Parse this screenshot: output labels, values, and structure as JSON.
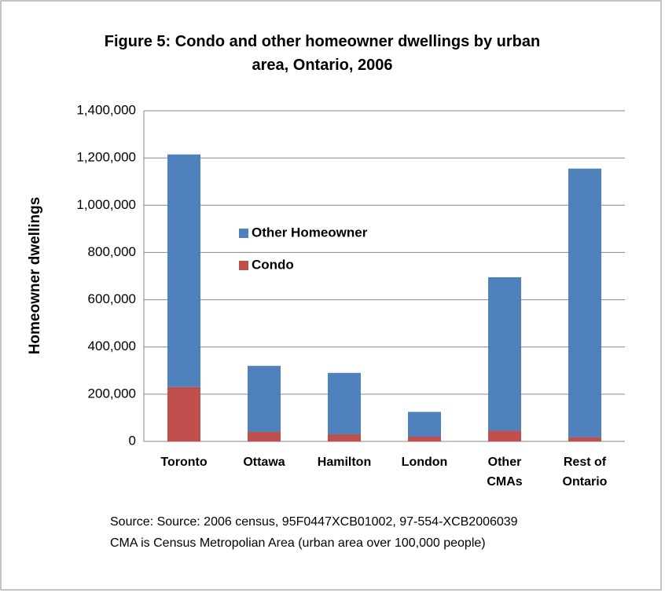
{
  "chart_data": {
    "type": "stacked_bar",
    "title": "Figure 5: Condo and other homeowner dwellings by urban area, Ontario, 2006",
    "ylabel": "Homeowner dwellings",
    "categories": [
      [
        "Toronto"
      ],
      [
        "Ottawa"
      ],
      [
        "Hamilton"
      ],
      [
        "London"
      ],
      [
        "Other",
        "CMAs"
      ],
      [
        "Rest of",
        "Ontario"
      ]
    ],
    "series": [
      {
        "name": "Condo",
        "color": "#c0504d",
        "values": [
          230000,
          40000,
          30000,
          20000,
          45000,
          18000
        ]
      },
      {
        "name": "Other Homeowner",
        "color": "#4f81bd",
        "values": [
          985000,
          280000,
          260000,
          105000,
          650000,
          1137000
        ]
      }
    ],
    "ylim": [
      0,
      1400000
    ],
    "yticks": [
      0,
      {
        "value": 200000,
        "label": "200,000"
      },
      {
        "value": 400000,
        "label": "400,000"
      },
      {
        "value": 600000,
        "label": "600,000"
      },
      {
        "value": 800000,
        "label": "800,000"
      },
      {
        "value": 1000000,
        "label": "1,000,000"
      },
      {
        "value": 1200000,
        "label": "1,200,000"
      },
      {
        "value": 1400000,
        "label": "1,400,000"
      }
    ],
    "grid": true,
    "notes": [
      "Source: Source:  2006 census, 95F0447XCB01002,  97-554-XCB2006039",
      "CMA is Census  Metropolian Area  (urban area over 100,000 people)"
    ]
  }
}
